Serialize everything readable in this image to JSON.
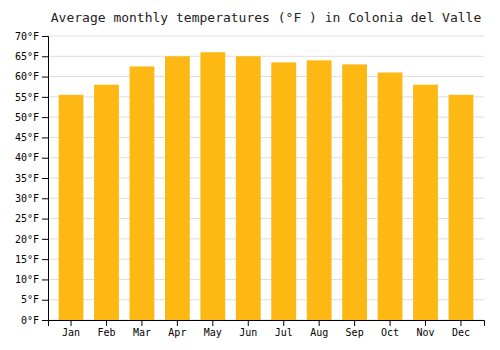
{
  "chart_data": {
    "type": "bar",
    "title": "Average monthly temperatures (°F ) in Colonia del Valle",
    "categories": [
      "Jan",
      "Feb",
      "Mar",
      "Apr",
      "May",
      "Jun",
      "Jul",
      "Aug",
      "Sep",
      "Oct",
      "Nov",
      "Dec"
    ],
    "values": [
      55.5,
      58.0,
      62.5,
      65.0,
      66.0,
      65.0,
      63.5,
      64.0,
      63.0,
      61.0,
      58.0,
      55.5
    ],
    "color": "#FDB813",
    "ylim": [
      0,
      70
    ],
    "yticks": [
      {
        "value": 0,
        "label": "0°F"
      },
      {
        "value": 5,
        "label": "5°F"
      },
      {
        "value": 10,
        "label": "10°F"
      },
      {
        "value": 15,
        "label": "15°F"
      },
      {
        "value": 20,
        "label": "20°F"
      },
      {
        "value": 25,
        "label": "25°F"
      },
      {
        "value": 30,
        "label": "30°F"
      },
      {
        "value": 35,
        "label": "35°F"
      },
      {
        "value": 40,
        "label": "40°F"
      },
      {
        "value": 45,
        "label": "45°F"
      },
      {
        "value": 50,
        "label": "50°F"
      },
      {
        "value": 55,
        "label": "55°F"
      },
      {
        "value": 60,
        "label": "60°F"
      },
      {
        "value": 65,
        "label": "65°F"
      },
      {
        "value": 70,
        "label": "70°F"
      }
    ],
    "grid": true
  }
}
